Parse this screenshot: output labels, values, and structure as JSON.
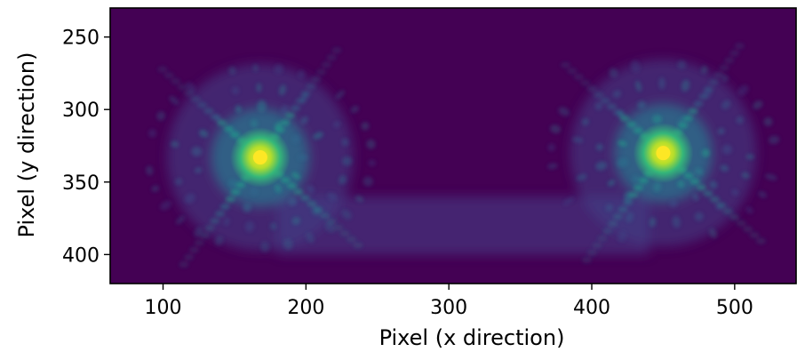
{
  "chart_data": {
    "type": "heatmap",
    "title": "",
    "xlabel": "Pixel (x direction)",
    "ylabel": "Pixel (y direction)",
    "xlim": [
      63,
      543
    ],
    "ylim": [
      230,
      420
    ],
    "y_inverted": true,
    "x_ticks": [
      100,
      200,
      300,
      400,
      500
    ],
    "x_tick_labels": [
      "100",
      "200",
      "300",
      "400",
      "500"
    ],
    "y_ticks": [
      250,
      300,
      350,
      400
    ],
    "y_tick_labels": [
      "250",
      "300",
      "350",
      "400"
    ],
    "colormap": "viridis",
    "background_color": "#440154",
    "grid": false,
    "peaks": [
      {
        "x": 168,
        "y": 333
      },
      {
        "x": 450,
        "y": 330
      }
    ]
  }
}
